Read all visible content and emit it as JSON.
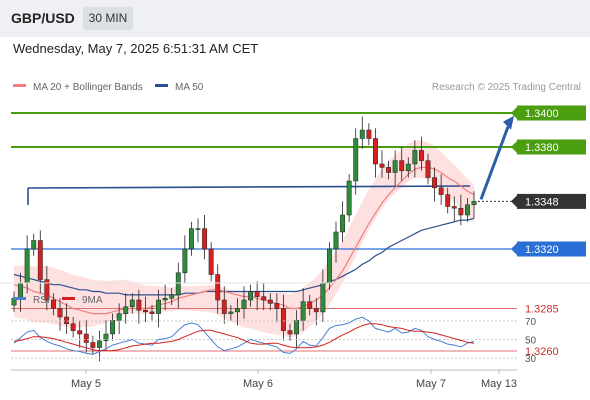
{
  "header": {
    "pair": "GBP/USD",
    "timeframe": "30 MIN",
    "datetime": "Wednesday, May 7, 2025 6:51:31 AM CET"
  },
  "legend": {
    "ma20": "MA 20 + Bollinger Bands",
    "ma50": "MA 50",
    "credit": "Research © 2025 Trading Central"
  },
  "rsi_legend": {
    "rsi": "RSI",
    "ma": "9MA"
  },
  "colors": {
    "candle_up": "#2e8b3a",
    "candle_down": "#d42020",
    "resistance": "#4a9e10",
    "support_blue": "#2a6fd6",
    "support_red": "#e07070",
    "ma50": "#2c4f8f",
    "ma20": "#f08080",
    "band": "#ffd8d8",
    "arrow": "#2a5ea8",
    "rsi": "#4a7fd0",
    "rsi_ma": "#d42020"
  },
  "chart_data": {
    "type": "candlestick",
    "y_range": [
      1.3245,
      1.3425
    ],
    "levels": [
      {
        "label": "1.3400",
        "value": 1.34,
        "kind": "resistance"
      },
      {
        "label": "1.3380",
        "value": 1.338,
        "kind": "resistance"
      },
      {
        "label": "1.3348",
        "value": 1.3348,
        "kind": "current"
      },
      {
        "label": "1.3320",
        "value": 1.332,
        "kind": "pivot"
      },
      {
        "label": "1.3285",
        "value": 1.3285,
        "kind": "support"
      },
      {
        "label": "1.3260",
        "value": 1.326,
        "kind": "support"
      }
    ],
    "forecast": {
      "from": 1.3348,
      "to": 1.3396
    },
    "close": [
      1.3291,
      1.33,
      1.332,
      1.3325,
      1.3302,
      1.329,
      1.3285,
      1.328,
      1.3276,
      1.3272,
      1.327,
      1.3265,
      1.3262,
      1.3266,
      1.327,
      1.3278,
      1.3282,
      1.3286,
      1.329,
      1.3284,
      1.3283,
      1.3282,
      1.329,
      1.3291,
      1.3293,
      1.3306,
      1.332,
      1.3332,
      1.3332,
      1.332,
      1.3305,
      1.329,
      1.3282,
      1.3283,
      1.3285,
      1.329,
      1.3295,
      1.3292,
      1.329,
      1.3288,
      1.3285,
      1.3272,
      1.327,
      1.3278,
      1.3289,
      1.3285,
      1.3283,
      1.33,
      1.332,
      1.333,
      1.334,
      1.336,
      1.3385,
      1.339,
      1.3385,
      1.337,
      1.3368,
      1.3365,
      1.3372,
      1.3366,
      1.337,
      1.3378,
      1.3372,
      1.3362,
      1.3356,
      1.3352,
      1.3345,
      1.3344,
      1.334,
      1.3346,
      1.3348
    ],
    "ma20_values": [
      1.3299,
      1.3298,
      1.3297,
      1.3295,
      1.3294,
      1.3293,
      1.3291,
      1.3289,
      1.3287,
      1.3285,
      1.3284,
      1.3283,
      1.3282,
      1.3282,
      1.3282,
      1.3283,
      1.3284,
      1.3285,
      1.3285,
      1.3285,
      1.3285,
      1.3286,
      1.3287,
      1.3288,
      1.3289,
      1.3291,
      1.3292,
      1.3293,
      1.3294,
      1.3295,
      1.3296,
      1.3296,
      1.3295,
      1.3294,
      1.3293,
      1.3292,
      1.3292,
      1.3291,
      1.329,
      1.3289,
      1.3288,
      1.3287,
      1.3285,
      1.3285,
      1.3286,
      1.3288,
      1.329,
      1.3293,
      1.3297,
      1.3302,
      1.3307,
      1.3314,
      1.3321,
      1.3328,
      1.3335,
      1.3341,
      1.3347,
      1.3352,
      1.3356,
      1.336,
      1.3364,
      1.3367,
      1.3368,
      1.3368,
      1.3367,
      1.3365,
      1.3362,
      1.336,
      1.3357,
      1.3354,
      1.3352
    ],
    "ma50_values": [
      1.3305,
      1.3304,
      1.3303,
      1.3302,
      1.3301,
      1.33,
      1.3299,
      1.3299,
      1.3298,
      1.3297,
      1.3296,
      1.3296,
      1.3295,
      1.3295,
      1.3294,
      1.3294,
      1.3294,
      1.3293,
      1.3293,
      1.3293,
      1.3293,
      1.3293,
      1.3293,
      1.3293,
      1.3293,
      1.3293,
      1.3294,
      1.3294,
      1.3294,
      1.3295,
      1.3295,
      1.3295,
      1.3295,
      1.3295,
      1.3295,
      1.3295,
      1.3295,
      1.3295,
      1.3295,
      1.3295,
      1.3295,
      1.3295,
      1.3295,
      1.3295,
      1.3296,
      1.3297,
      1.3298,
      1.3299,
      1.3301,
      1.3302,
      1.3304,
      1.3306,
      1.3308,
      1.3311,
      1.3313,
      1.3316,
      1.3318,
      1.3321,
      1.3323,
      1.3325,
      1.3327,
      1.3329,
      1.3331,
      1.3332,
      1.3333,
      1.3334,
      1.3335,
      1.3336,
      1.3337,
      1.3337,
      1.3338
    ],
    "rsi": {
      "levels": [
        70,
        50,
        30
      ],
      "values": [
        46,
        52,
        58,
        60,
        52,
        48,
        45,
        43,
        40,
        38,
        37,
        35,
        34,
        37,
        40,
        44,
        46,
        48,
        50,
        46,
        45,
        44,
        50,
        51,
        53,
        60,
        66,
        68,
        66,
        58,
        50,
        42,
        38,
        40,
        42,
        46,
        50,
        48,
        46,
        44,
        42,
        36,
        35,
        40,
        48,
        44,
        43,
        52,
        62,
        65,
        66,
        68,
        72,
        74,
        70,
        62,
        60,
        58,
        62,
        57,
        58,
        62,
        60,
        53,
        50,
        48,
        45,
        44,
        42,
        46,
        48
      ],
      "ma_values": [
        48,
        49,
        51,
        53,
        53,
        52,
        51,
        49,
        47,
        45,
        43,
        41,
        39,
        38,
        38,
        38,
        39,
        41,
        43,
        44,
        45,
        46,
        46,
        47,
        48,
        50,
        53,
        56,
        59,
        60,
        60,
        58,
        56,
        54,
        52,
        49,
        46,
        45,
        45,
        46,
        46,
        44,
        42,
        41,
        41,
        41,
        42,
        44,
        47,
        51,
        55,
        58,
        62,
        65,
        67,
        67,
        66,
        64,
        63,
        62,
        60,
        59,
        59,
        58,
        57,
        55,
        53,
        51,
        49,
        47,
        46
      ]
    },
    "x_labels": [
      "May 5",
      "May 6",
      "May 7",
      "May 13"
    ]
  }
}
